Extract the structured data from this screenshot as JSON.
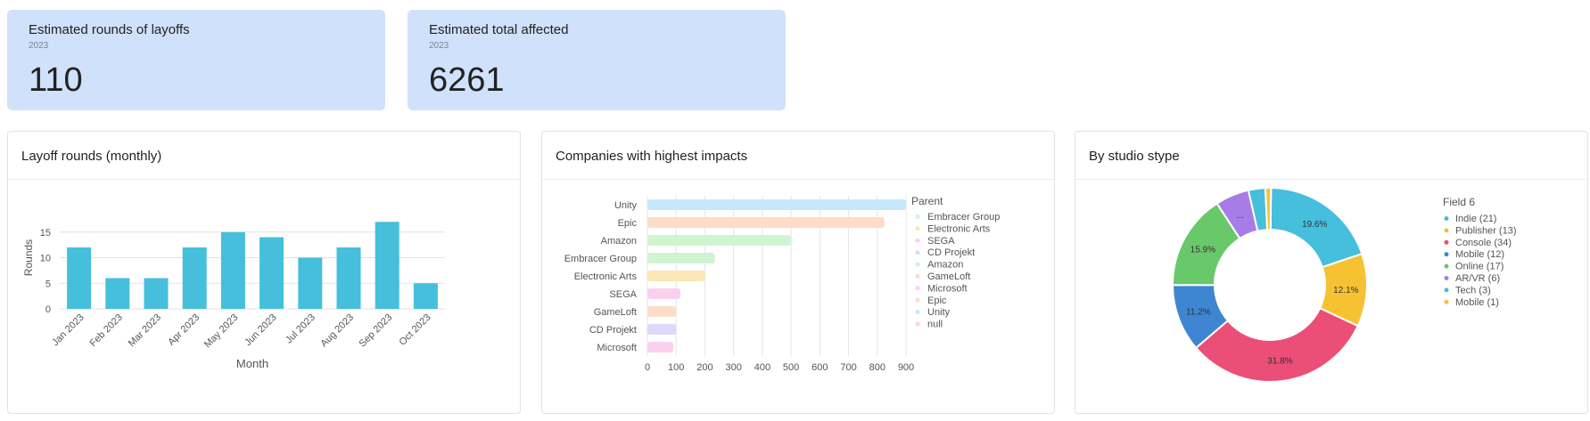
{
  "kpis": [
    {
      "title": "Estimated rounds of layoffs",
      "subtitle": "2023",
      "value": "110"
    },
    {
      "title": "Estimated total affected",
      "subtitle": "2023",
      "value": "6261"
    }
  ],
  "cards": {
    "monthly": {
      "title": "Layoff rounds (monthly)"
    },
    "companies": {
      "title": "Companies with highest impacts"
    },
    "studio": {
      "title": "By studio stype"
    }
  },
  "chart_data": [
    {
      "type": "bar",
      "categories": [
        "Jan 2023",
        "Feb 2023",
        "Mar 2023",
        "Apr 2023",
        "May 2023",
        "Jun 2023",
        "Jul 2023",
        "Aug 2023",
        "Sep 2023",
        "Oct 2023"
      ],
      "values": [
        12,
        6,
        6,
        12,
        15,
        14,
        10,
        12,
        17,
        5
      ],
      "xlabel": "Month",
      "ylabel": "Rounds",
      "ylim": [
        0,
        20
      ],
      "yticks": [
        0,
        5,
        10,
        15
      ],
      "color": "#45bfdc",
      "grid": true
    },
    {
      "type": "bar",
      "orientation": "horizontal",
      "categories": [
        "Unity",
        "Epic",
        "Amazon",
        "Embracer Group",
        "Electronic Arts",
        "SEGA",
        "GameLoft",
        "CD Projekt",
        "Microsoft"
      ],
      "values": [
        900,
        825,
        500,
        235,
        200,
        115,
        100,
        100,
        90
      ],
      "bar_colors": [
        "#c5e9fb",
        "#fddcca",
        "#d0f4d2",
        "#d0f4d2",
        "#fbe7b5",
        "#fbd0ef",
        "#fddcca",
        "#ddd9fb",
        "#fbd0ef"
      ],
      "xlim": [
        0,
        900
      ],
      "xticks": [
        0,
        100,
        200,
        300,
        400,
        500,
        600,
        700,
        800,
        900
      ],
      "grid": true,
      "legend": {
        "title": "Parent",
        "position": "right",
        "items": [
          {
            "name": "Embracer Group",
            "color": "#d0f4d2"
          },
          {
            "name": "Electronic Arts",
            "color": "#fbe7b5"
          },
          {
            "name": "SEGA",
            "color": "#fbd0ef"
          },
          {
            "name": "CD Projekt",
            "color": "#ddd9fb"
          },
          {
            "name": "Amazon",
            "color": "#d0f4d2"
          },
          {
            "name": "GameLoft",
            "color": "#fddcca"
          },
          {
            "name": "Microsoft",
            "color": "#fbd0ef"
          },
          {
            "name": "Epic",
            "color": "#fddcca"
          },
          {
            "name": "Unity",
            "color": "#c5e9fb"
          },
          {
            "name": "null",
            "color": "#fbd0ef"
          }
        ]
      }
    },
    {
      "type": "pie",
      "donut": true,
      "labels": [
        "Indie",
        "Publisher",
        "Console",
        "Mobile",
        "Online",
        "AR/VR",
        "Tech",
        "Mobile"
      ],
      "values": [
        21,
        13,
        34,
        12,
        17,
        6,
        3,
        1
      ],
      "slice_labels": [
        "19.6%",
        "12.1%",
        "31.8%",
        "11.2%",
        "15.9%",
        "...",
        "",
        ""
      ],
      "colors": [
        "#45bfdc",
        "#f7c232",
        "#eb4e76",
        "#3f86d2",
        "#69c86a",
        "#a87ce6",
        "#45bfdc",
        "#f7c232"
      ],
      "legend": {
        "title": "Field 6",
        "position": "right",
        "items": [
          "Indie (21)",
          "Publisher (13)",
          "Console (34)",
          "Mobile (12)",
          "Online (17)",
          "AR/VR (6)",
          "Tech (3)",
          "Mobile (1)"
        ]
      }
    }
  ]
}
